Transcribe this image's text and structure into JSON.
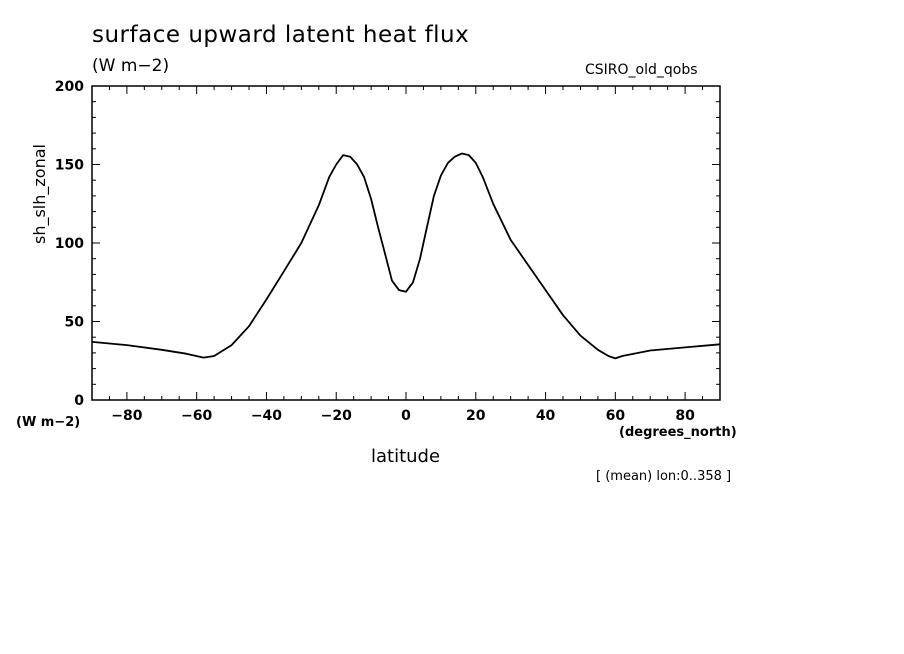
{
  "chart_data": {
    "type": "line",
    "title": "surface upward latent heat flux",
    "units": "(W m−2)",
    "model_label": "CSIRO_old_qobs",
    "ylabel": "sh_slh_zonal",
    "yunits": "(W m−2)",
    "xlabel": "latitude",
    "xunits": "(degrees_north)",
    "note": "[ (mean) lon:0..358 ]",
    "xlim": [
      -90,
      90
    ],
    "ylim": [
      0,
      200
    ],
    "xticks": [
      -80,
      -60,
      -40,
      -20,
      0,
      20,
      40,
      60,
      80
    ],
    "yticks": [
      0,
      50,
      100,
      150,
      200
    ],
    "grid": false,
    "series": [
      {
        "x": [
          -90,
          -80,
          -70,
          -63,
          -58,
          -55,
          -50,
          -45,
          -40,
          -35,
          -30,
          -25,
          -22,
          -20,
          -18,
          -16,
          -14,
          -12,
          -10,
          -8,
          -6,
          -4,
          -2,
          0,
          2,
          4,
          6,
          8,
          10,
          12,
          14,
          16,
          18,
          20,
          22,
          25,
          30,
          35,
          40,
          45,
          50,
          55,
          58,
          60,
          62,
          70,
          80,
          90
        ],
        "y": [
          37,
          35,
          32,
          29.5,
          27,
          28,
          35,
          47,
          64,
          82,
          100,
          124,
          142,
          150,
          156,
          155,
          150,
          142,
          128,
          110,
          93,
          76,
          70,
          69,
          75,
          90,
          110,
          130,
          143,
          151,
          155,
          157,
          156,
          151,
          142,
          125,
          102,
          86,
          70,
          54,
          41,
          32,
          28,
          26.5,
          28,
          31.5,
          33.5,
          35.5
        ],
        "color": "#000000"
      }
    ]
  }
}
